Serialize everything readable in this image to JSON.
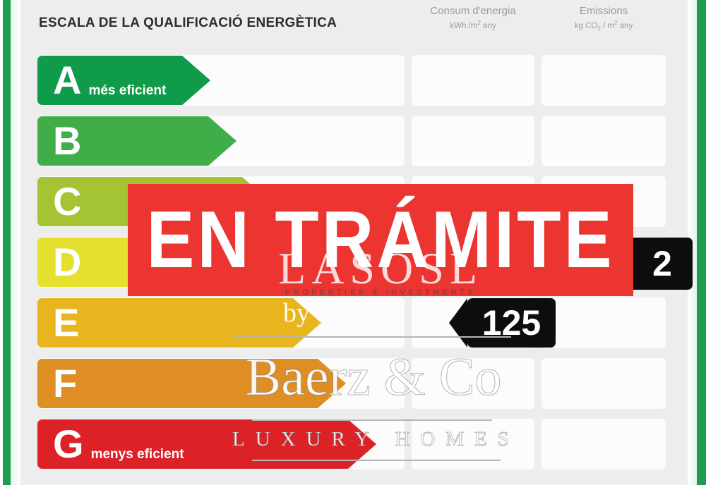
{
  "certificate": {
    "title": "ESCALA DE LA QUALIFICACIÓ ENERGÈTICA",
    "columns": {
      "consum": {
        "label": "Consum d'energia",
        "unit_pre": "kWh./m",
        "unit_sup": "2",
        "unit_post": " any"
      },
      "emissions": {
        "label": "Emissions",
        "unit_pre": "kg CO",
        "unit_sub": "2",
        "unit_mid": " / m",
        "unit_sup": "2",
        "unit_post": " any"
      }
    },
    "ratings": [
      {
        "letter": "A",
        "note": "més eficient",
        "color": "#0F9B49",
        "arrow_width": 245
      },
      {
        "letter": "B",
        "note": "",
        "color": "#3FAE49",
        "arrow_width": 282
      },
      {
        "letter": "C",
        "note": "",
        "color": "#A5C433",
        "arrow_width": 330
      },
      {
        "letter": "D",
        "note": "",
        "color": "#E5DF2E",
        "arrow_width": 372
      },
      {
        "letter": "E",
        "note": "",
        "color": "#E9B51E",
        "arrow_width": 402
      },
      {
        "letter": "F",
        "note": "",
        "color": "#DE8E23",
        "arrow_width": 437
      },
      {
        "letter": "G",
        "note": "menys eficient",
        "color": "#DC2127",
        "arrow_width": 480
      }
    ],
    "values": {
      "consum": "125",
      "emissions_visible": "2"
    },
    "frame_color": "#1F9C4D"
  },
  "banner": {
    "text": "EN TRÁMITE",
    "color": "#EC3431"
  },
  "watermark": {
    "brand": "LASOSL",
    "tagline": "PROPERTIES & INVESTMENTS",
    "by": "by",
    "name": "Baerz & Co",
    "subtitle": "LUXURY HOMES"
  },
  "chart_data": {
    "type": "bar",
    "title": "ESCALA DE LA QUALIFICACIÓ ENERGÈTICA",
    "categories": [
      "A",
      "B",
      "C",
      "D",
      "E",
      "F",
      "G"
    ],
    "category_colors": [
      "#0F9B49",
      "#3FAE49",
      "#A5C433",
      "#E5DF2E",
      "#E9B51E",
      "#DE8E23",
      "#DC2127"
    ],
    "category_notes": {
      "A": "més eficient",
      "G": "menys eficient"
    },
    "columns": [
      "Consum d'energia kWh./m2 any",
      "Emissions kg CO2 / m2 any"
    ],
    "indicated_values": [
      {
        "column": "Consum d'energia",
        "row": "E",
        "value": "125"
      },
      {
        "column": "Emissions",
        "row": "D",
        "value": "2"
      }
    ],
    "overlay_text": "EN TRÁMITE",
    "legend_position": "none",
    "grid": false
  }
}
